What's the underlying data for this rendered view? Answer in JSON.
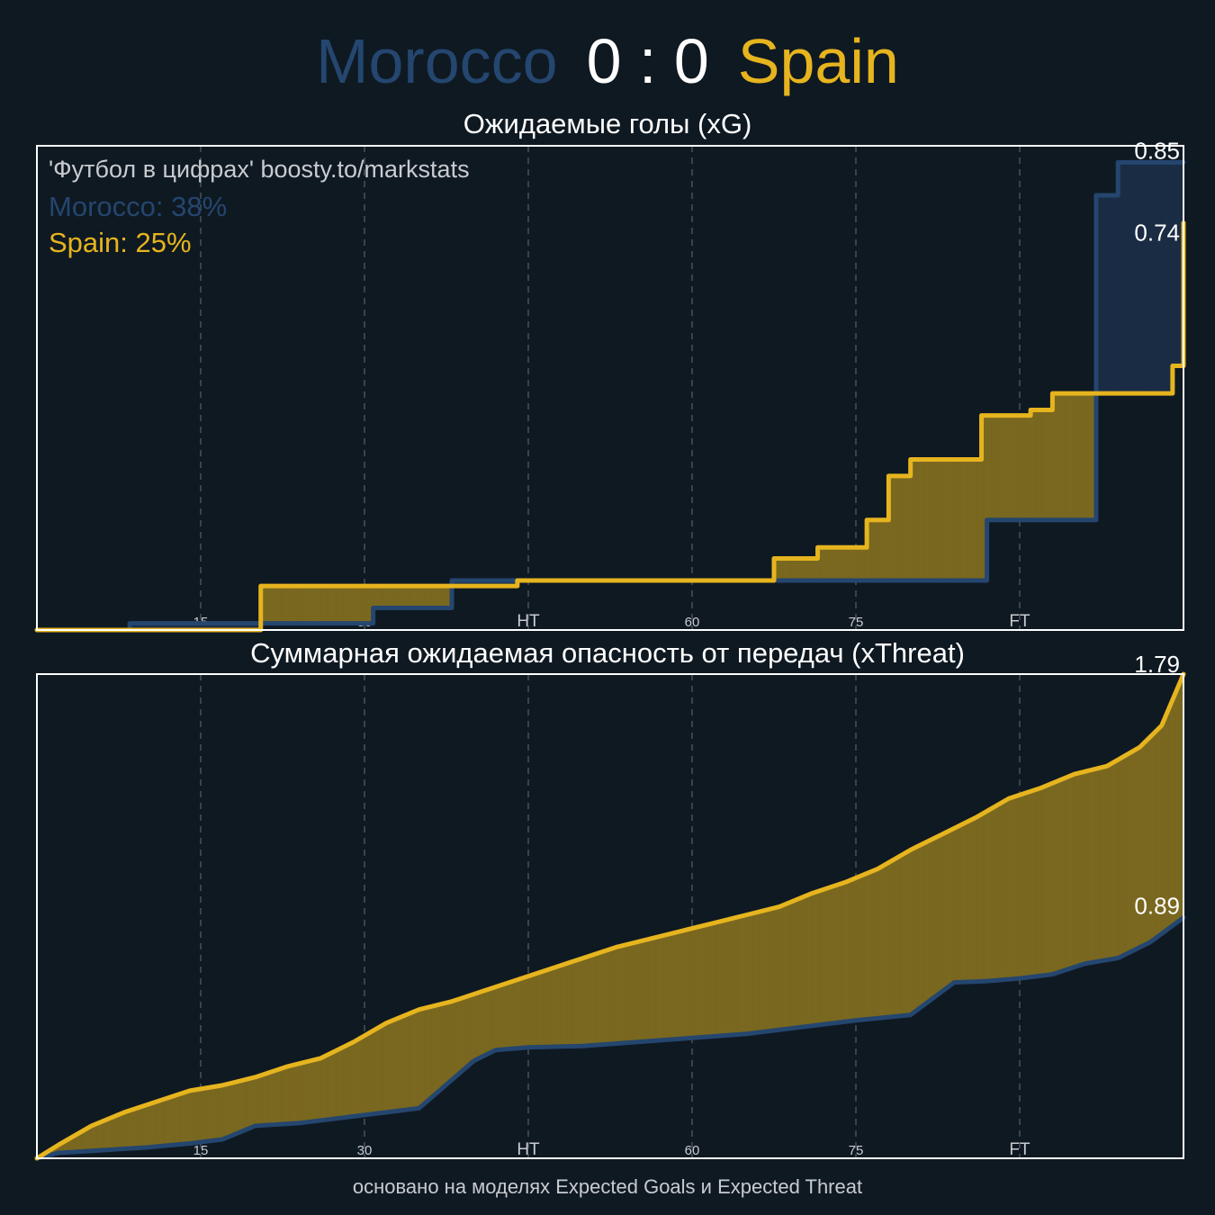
{
  "header": {
    "home_team": "Morocco",
    "score": "0 : 0",
    "away_team": "Spain"
  },
  "colors": {
    "home": "#24466f",
    "away": "#e6b41e",
    "home_fill": "#1b2d45",
    "away_fill": "#7a6820",
    "background": "#0f1922",
    "grid": "#3a434c",
    "frame": "#ffffff"
  },
  "footer": "основано на моделях Expected Goals и Expected Threat",
  "chart_data": [
    {
      "type": "line",
      "title": "Ожидаемые голы (xG)",
      "xlim": [
        0,
        105
      ],
      "ylim": [
        0,
        0.88
      ],
      "x_ticks": [
        {
          "x": 15,
          "label": "15",
          "major": false
        },
        {
          "x": 30,
          "label": "30",
          "major": false
        },
        {
          "x": 45,
          "label": "HT",
          "major": true
        },
        {
          "x": 60,
          "label": "60",
          "major": false
        },
        {
          "x": 75,
          "label": "75",
          "major": false
        },
        {
          "x": 90,
          "label": "FT",
          "major": true
        }
      ],
      "annotations": {
        "credit": "'Футбол в цифрах' boosty.to/markstats",
        "home_label": "Morocco: 38%",
        "away_label": "Spain: 25%"
      },
      "end_labels": {
        "home": "0.85",
        "away": "0.74"
      },
      "step": true,
      "series": [
        {
          "name": "Morocco",
          "team": "home",
          "x": [
            0,
            8.5,
            23.7,
            30.8,
            35,
            38,
            39.5,
            49,
            56,
            72,
            77,
            82,
            87,
            89,
            91,
            93,
            95,
            97,
            99,
            101,
            103,
            105
          ],
          "y": [
            0,
            0.012,
            0.012,
            0.04,
            0.04,
            0.09,
            0.09,
            0.09,
            0.09,
            0.09,
            0.09,
            0.09,
            0.2,
            0.2,
            0.2,
            0.2,
            0.2,
            0.79,
            0.85,
            0.85,
            0.85,
            0.85
          ]
        },
        {
          "name": "Spain",
          "team": "away",
          "x": [
            0,
            19.5,
            20.5,
            32,
            34,
            38,
            39.5,
            44,
            49,
            60,
            61.5,
            66.5,
            67.5,
            69,
            71.5,
            73.5,
            76,
            78,
            80,
            82.5,
            84.5,
            86.5,
            89,
            91,
            93,
            95,
            97,
            99,
            101,
            104,
            105
          ],
          "y": [
            0,
            0,
            0.08,
            0.08,
            0.08,
            0.08,
            0.08,
            0.09,
            0.09,
            0.09,
            0.09,
            0.09,
            0.13,
            0.13,
            0.15,
            0.15,
            0.2,
            0.28,
            0.31,
            0.31,
            0.31,
            0.39,
            0.39,
            0.4,
            0.43,
            0.43,
            0.43,
            0.43,
            0.43,
            0.48,
            0.74
          ]
        }
      ]
    },
    {
      "type": "line",
      "title": "Суммарная ожидаемая опасность от передач (xThreat)",
      "xlim": [
        0,
        105
      ],
      "ylim": [
        0,
        1.79
      ],
      "x_ticks": [
        {
          "x": 15,
          "label": "15",
          "major": false
        },
        {
          "x": 30,
          "label": "30",
          "major": false
        },
        {
          "x": 45,
          "label": "HT",
          "major": true
        },
        {
          "x": 60,
          "label": "60",
          "major": false
        },
        {
          "x": 75,
          "label": "75",
          "major": false
        },
        {
          "x": 90,
          "label": "FT",
          "major": true
        }
      ],
      "end_labels": {
        "home": "0.89",
        "away": "1.79"
      },
      "step": false,
      "series": [
        {
          "name": "Morocco",
          "team": "home",
          "x": [
            0,
            2,
            6,
            10,
            14,
            17,
            20,
            24,
            27,
            31,
            35,
            36,
            40,
            42,
            45,
            50,
            55,
            60,
            65,
            70,
            75,
            80,
            84,
            87,
            90,
            93,
            96,
            99,
            102,
            105
          ],
          "y": [
            0,
            0.02,
            0.03,
            0.04,
            0.055,
            0.07,
            0.12,
            0.13,
            0.145,
            0.165,
            0.185,
            0.22,
            0.36,
            0.4,
            0.41,
            0.415,
            0.43,
            0.445,
            0.46,
            0.485,
            0.51,
            0.53,
            0.65,
            0.655,
            0.665,
            0.68,
            0.72,
            0.74,
            0.8,
            0.89
          ]
        },
        {
          "name": "Spain",
          "team": "away",
          "x": [
            0,
            2,
            5,
            8,
            11,
            14,
            17,
            20,
            23,
            26,
            29,
            32,
            35,
            38,
            41,
            44,
            47,
            50,
            53,
            56,
            59,
            62,
            65,
            68,
            71,
            74,
            77,
            80,
            83,
            86,
            89,
            92,
            95,
            98,
            101,
            103,
            105
          ],
          "y": [
            0,
            0.05,
            0.12,
            0.17,
            0.21,
            0.25,
            0.27,
            0.3,
            0.34,
            0.37,
            0.43,
            0.5,
            0.55,
            0.58,
            0.62,
            0.66,
            0.7,
            0.74,
            0.78,
            0.81,
            0.84,
            0.87,
            0.9,
            0.93,
            0.98,
            1.02,
            1.07,
            1.14,
            1.2,
            1.26,
            1.33,
            1.37,
            1.42,
            1.45,
            1.52,
            1.6,
            1.79
          ]
        }
      ]
    }
  ]
}
